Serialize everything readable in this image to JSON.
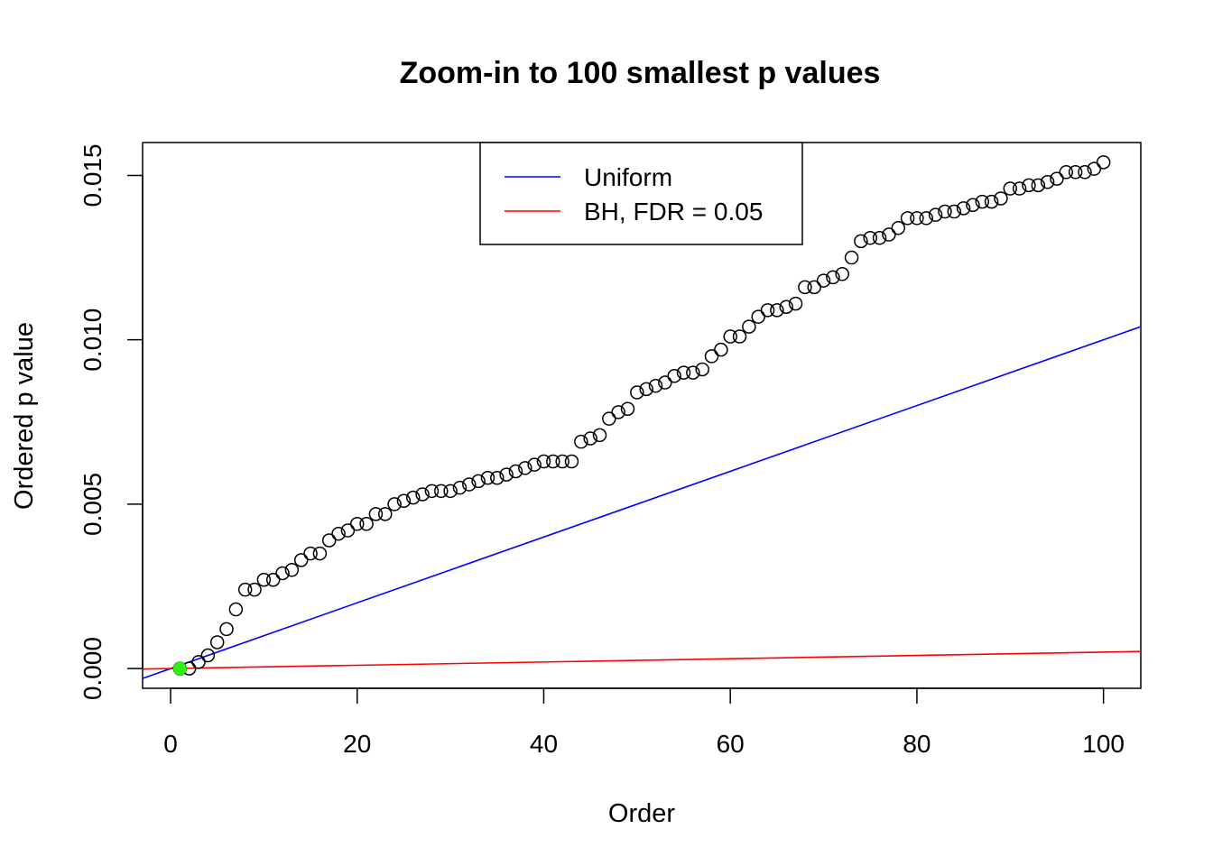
{
  "chart_data": {
    "type": "scatter",
    "title": "Zoom-in to 100 smallest p values",
    "xlabel": "Order",
    "ylabel": "Ordered p value",
    "xlim": [
      -3,
      104
    ],
    "ylim": [
      -0.0006,
      0.016
    ],
    "xticks": [
      0,
      20,
      40,
      60,
      80,
      100
    ],
    "xtick_labels": [
      "0",
      "20",
      "40",
      "60",
      "80",
      "100"
    ],
    "yticks": [
      0.0,
      0.005,
      0.01,
      0.015
    ],
    "ytick_labels": [
      "0.000",
      "0.005",
      "0.010",
      "0.015"
    ],
    "grid": false,
    "legend": {
      "placement": "top",
      "entries": [
        {
          "label": "Uniform",
          "color": "#0000ff"
        },
        {
          "label": "BH, FDR = 0.05",
          "color": "#ff0000"
        }
      ]
    },
    "lines": [
      {
        "name": "Uniform",
        "color": "#0000ff",
        "slope": 0.0001,
        "intercept": 0
      },
      {
        "name": "BH, FDR = 0.05",
        "color": "#ff0000",
        "slope": 5e-06,
        "intercept": 0
      }
    ],
    "points": {
      "marker": "open-circle",
      "color": "#000000",
      "x": [
        1,
        2,
        3,
        4,
        5,
        6,
        7,
        8,
        9,
        10,
        11,
        12,
        13,
        14,
        15,
        16,
        17,
        18,
        19,
        20,
        21,
        22,
        23,
        24,
        25,
        26,
        27,
        28,
        29,
        30,
        31,
        32,
        33,
        34,
        35,
        36,
        37,
        38,
        39,
        40,
        41,
        42,
        43,
        44,
        45,
        46,
        47,
        48,
        49,
        50,
        51,
        52,
        53,
        54,
        55,
        56,
        57,
        58,
        59,
        60,
        61,
        62,
        63,
        64,
        65,
        66,
        67,
        68,
        69,
        70,
        71,
        72,
        73,
        74,
        75,
        76,
        77,
        78,
        79,
        80,
        81,
        82,
        83,
        84,
        85,
        86,
        87,
        88,
        89,
        90,
        91,
        92,
        93,
        94,
        95,
        96,
        97,
        98,
        99,
        100
      ],
      "y": [
        0.0,
        0.0,
        0.0002,
        0.0004,
        0.0008,
        0.0012,
        0.0018,
        0.0024,
        0.0024,
        0.0027,
        0.0027,
        0.0029,
        0.003,
        0.0033,
        0.0035,
        0.0035,
        0.0039,
        0.0041,
        0.0042,
        0.0044,
        0.0044,
        0.0047,
        0.0047,
        0.005,
        0.0051,
        0.0052,
        0.0053,
        0.0054,
        0.0054,
        0.0054,
        0.0055,
        0.0056,
        0.0057,
        0.0058,
        0.0058,
        0.0059,
        0.006,
        0.0061,
        0.0062,
        0.0063,
        0.0063,
        0.0063,
        0.0063,
        0.0069,
        0.007,
        0.0071,
        0.0076,
        0.0078,
        0.0079,
        0.0084,
        0.0085,
        0.0086,
        0.0087,
        0.0089,
        0.009,
        0.009,
        0.0091,
        0.0095,
        0.0097,
        0.0101,
        0.0101,
        0.0104,
        0.0107,
        0.0109,
        0.0109,
        0.011,
        0.0111,
        0.0116,
        0.0116,
        0.0118,
        0.0119,
        0.012,
        0.0125,
        0.013,
        0.0131,
        0.0131,
        0.0132,
        0.0134,
        0.0137,
        0.0137,
        0.0137,
        0.0138,
        0.0139,
        0.0139,
        0.014,
        0.0141,
        0.0142,
        0.0142,
        0.0143,
        0.0146,
        0.0146,
        0.0147,
        0.0147,
        0.0148,
        0.0149,
        0.0151,
        0.0151,
        0.0151,
        0.0152,
        0.0154
      ]
    },
    "highlight": {
      "x": 1,
      "y": 0.0,
      "color": "#33ee11"
    }
  }
}
